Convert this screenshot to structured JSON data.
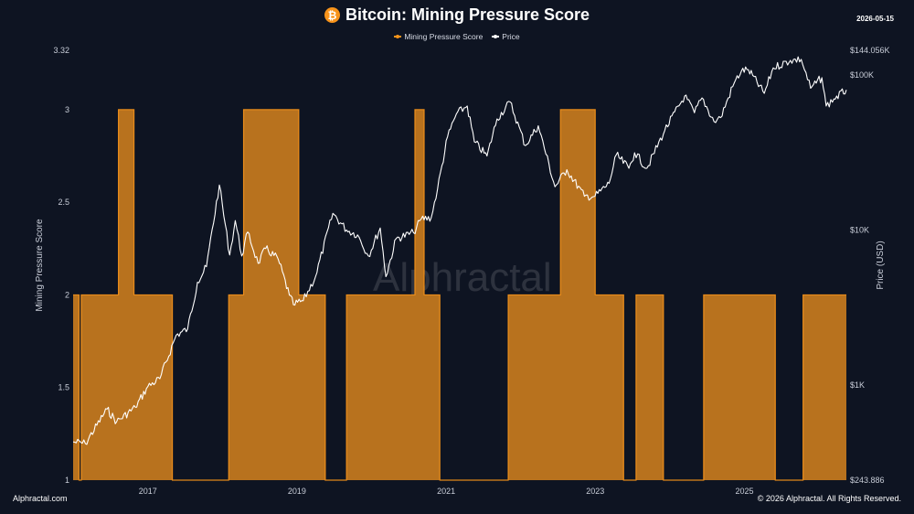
{
  "header": {
    "title": "Bitcoin: Mining Pressure Score",
    "icon": "bitcoin-icon",
    "icon_glyph": "₿",
    "date": "2026-05-15"
  },
  "legend": [
    {
      "label": "Mining Pressure Score",
      "color": "#f7931a"
    },
    {
      "label": "Price",
      "color": "#ffffff"
    }
  ],
  "watermark": "Alphractal",
  "footer": {
    "left": "Alphractal.com",
    "right": "© 2026 Alphractal. All Rights Reserved."
  },
  "colors": {
    "background": "#0e1422",
    "score_fill": "#b8721e",
    "score_line": "#f7931a",
    "price_line": "#ffffff"
  },
  "chart_data": {
    "type": "area",
    "title": "Bitcoin: Mining Pressure Score",
    "ylabel": "Mining Pressure Score",
    "y2label": "Price (USD)",
    "x_ticks": [
      "2017",
      "2019",
      "2021",
      "2023",
      "2025"
    ],
    "xlim": [
      "2016-01-01",
      "2026-05-15"
    ],
    "ylim": [
      1,
      3.32
    ],
    "y_ticks": [
      {
        "value": 1,
        "label": "1"
      },
      {
        "value": 1.5,
        "label": "1.5"
      },
      {
        "value": 2,
        "label": "2"
      },
      {
        "value": 2.5,
        "label": "2.5"
      },
      {
        "value": 3,
        "label": "3"
      },
      {
        "value": 3.32,
        "label": "3.32"
      }
    ],
    "y2_scale": "log",
    "y2lim": [
      243.886,
      144056
    ],
    "y2_ticks": [
      {
        "value": 243.886,
        "label": "$243.886"
      },
      {
        "value": 1000,
        "label": "$1K"
      },
      {
        "value": 10000,
        "label": "$10K"
      },
      {
        "value": 100000,
        "label": "$100K"
      },
      {
        "value": 144056,
        "label": "$144.056K"
      }
    ],
    "series": [
      {
        "name": "Mining Pressure Score",
        "axis": "left",
        "style": "step-area",
        "points": [
          [
            "2016-01-01",
            2
          ],
          [
            "2016-01-30",
            1
          ],
          [
            "2016-02-10",
            2
          ],
          [
            "2016-08-10",
            3
          ],
          [
            "2016-10-25",
            2
          ],
          [
            "2017-05-01",
            1
          ],
          [
            "2018-02-01",
            2
          ],
          [
            "2018-04-15",
            3
          ],
          [
            "2019-01-10",
            2
          ],
          [
            "2019-05-20",
            1
          ],
          [
            "2019-09-01",
            2
          ],
          [
            "2020-08-01",
            3
          ],
          [
            "2020-09-15",
            2
          ],
          [
            "2020-12-01",
            1
          ],
          [
            "2021-11-01",
            2
          ],
          [
            "2022-07-15",
            3
          ],
          [
            "2023-01-01",
            2
          ],
          [
            "2023-05-20",
            1
          ],
          [
            "2023-07-20",
            2
          ],
          [
            "2023-12-01",
            1
          ],
          [
            "2024-06-15",
            2
          ],
          [
            "2025-06-01",
            1
          ],
          [
            "2025-10-15",
            2
          ],
          [
            "2026-05-15",
            2
          ]
        ]
      },
      {
        "name": "Price",
        "axis": "right",
        "style": "line",
        "points": [
          [
            "2016-01-01",
            430
          ],
          [
            "2016-03-01",
            420
          ],
          [
            "2016-06-15",
            700
          ],
          [
            "2016-08-01",
            580
          ],
          [
            "2016-11-01",
            720
          ],
          [
            "2017-01-01",
            980
          ],
          [
            "2017-03-01",
            1100
          ],
          [
            "2017-05-20",
            2100
          ],
          [
            "2017-07-15",
            2300
          ],
          [
            "2017-09-01",
            4600
          ],
          [
            "2017-10-15",
            5800
          ],
          [
            "2017-12-17",
            19500
          ],
          [
            "2018-02-06",
            6900
          ],
          [
            "2018-03-05",
            11500
          ],
          [
            "2018-04-06",
            6800
          ],
          [
            "2018-05-05",
            9700
          ],
          [
            "2018-06-25",
            6100
          ],
          [
            "2018-08-01",
            7600
          ],
          [
            "2018-10-01",
            6500
          ],
          [
            "2018-11-25",
            3800
          ],
          [
            "2018-12-15",
            3300
          ],
          [
            "2019-02-01",
            3500
          ],
          [
            "2019-04-02",
            5000
          ],
          [
            "2019-06-26",
            12800
          ],
          [
            "2019-09-01",
            10000
          ],
          [
            "2019-10-25",
            9300
          ],
          [
            "2019-12-17",
            6800
          ],
          [
            "2020-02-13",
            10300
          ],
          [
            "2020-03-12",
            5000
          ],
          [
            "2020-05-01",
            8800
          ],
          [
            "2020-07-25",
            9600
          ],
          [
            "2020-09-01",
            11800
          ],
          [
            "2020-10-20",
            12000
          ],
          [
            "2020-11-20",
            18500
          ],
          [
            "2021-01-08",
            40000
          ],
          [
            "2021-02-20",
            56000
          ],
          [
            "2021-04-14",
            63000
          ],
          [
            "2021-05-19",
            37000
          ],
          [
            "2021-07-20",
            30000
          ],
          [
            "2021-09-07",
            52000
          ],
          [
            "2021-11-10",
            67000
          ],
          [
            "2022-01-24",
            35000
          ],
          [
            "2022-03-28",
            47000
          ],
          [
            "2022-06-18",
            19000
          ],
          [
            "2022-08-15",
            24500
          ],
          [
            "2022-11-09",
            16500
          ],
          [
            "2022-12-31",
            16500
          ],
          [
            "2023-03-10",
            20000
          ],
          [
            "2023-04-14",
            30500
          ],
          [
            "2023-06-15",
            25000
          ],
          [
            "2023-07-13",
            31500
          ],
          [
            "2023-09-11",
            25000
          ],
          [
            "2023-12-08",
            44000
          ],
          [
            "2024-03-14",
            73000
          ],
          [
            "2024-05-01",
            57000
          ],
          [
            "2024-06-07",
            71000
          ],
          [
            "2024-08-05",
            50000
          ],
          [
            "2024-09-06",
            53000
          ],
          [
            "2024-11-12",
            89000
          ],
          [
            "2024-12-17",
            106000
          ],
          [
            "2025-01-20",
            108000
          ],
          [
            "2025-04-08",
            76000
          ],
          [
            "2025-05-22",
            111000
          ],
          [
            "2025-08-14",
            124000
          ],
          [
            "2025-10-06",
            126000
          ],
          [
            "2025-11-21",
            82000
          ],
          [
            "2026-01-15",
            96000
          ],
          [
            "2026-02-05",
            63000
          ],
          [
            "2026-03-15",
            70000
          ],
          [
            "2026-05-15",
            80000
          ]
        ]
      }
    ],
    "grid": false,
    "legend_position": "top-center"
  }
}
